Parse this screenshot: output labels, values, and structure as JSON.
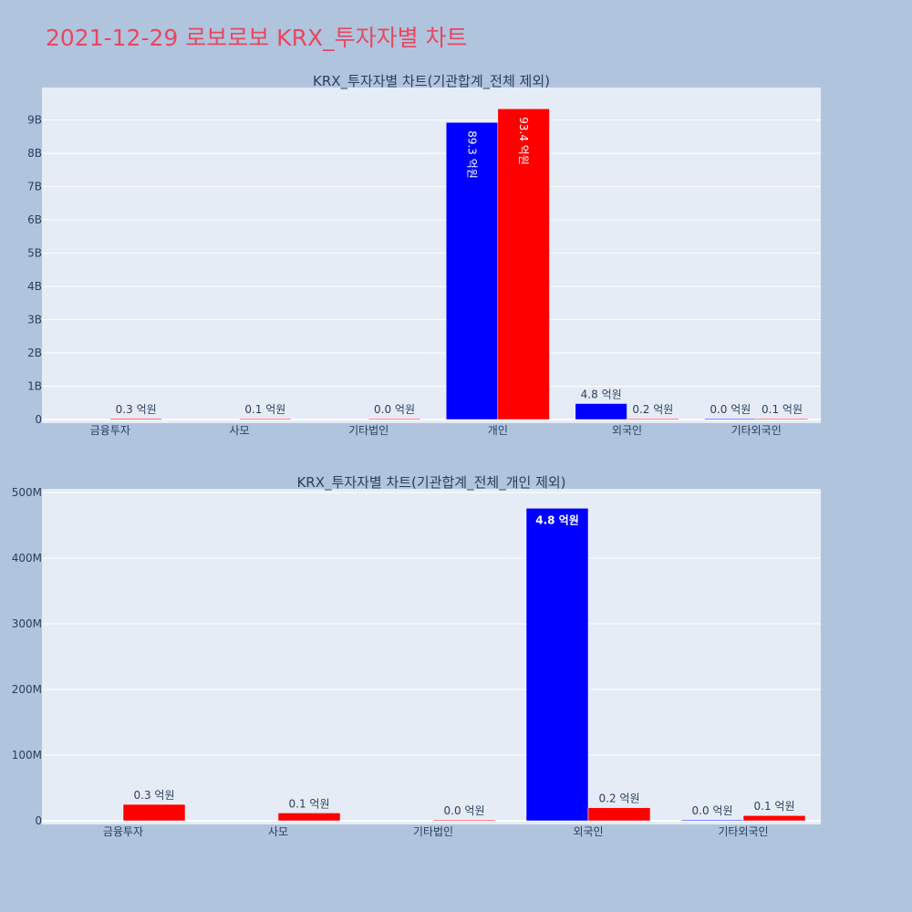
{
  "page_title": "2021-12-29 로보로보 KRX_투자자별 차트",
  "colors": {
    "series_a": "#0000ff",
    "series_b": "#ff0000",
    "plot_bg": "#e5ecf6",
    "title": "#e8475f"
  },
  "chart_data": [
    {
      "type": "bar",
      "title": "KRX_투자자별 차트(기관합계_전체 제외)",
      "categories": [
        "금융투자",
        "사모",
        "기타법인",
        "개인",
        "외국인",
        "기타외국인"
      ],
      "series": [
        {
          "values": [
            null,
            null,
            null,
            8930000000,
            480000000,
            0
          ],
          "labels": [
            "",
            "",
            "",
            "89.3 억원",
            "4.8 억원",
            "0.0 억원"
          ]
        },
        {
          "values": [
            30000000,
            10000000,
            0,
            9340000000,
            20000000,
            10000000
          ],
          "labels": [
            "0.3 억원",
            "0.1 억원",
            "0.0 억원",
            "93.4 억원",
            "0.2 억원",
            "0.1 억원"
          ]
        }
      ],
      "ylim": [
        0,
        9950000000
      ],
      "yticks": [
        0,
        1000000000,
        2000000000,
        3000000000,
        4000000000,
        5000000000,
        6000000000,
        7000000000,
        8000000000,
        9000000000
      ],
      "ytick_labels": [
        "0",
        "1B",
        "2B",
        "3B",
        "4B",
        "5B",
        "6B",
        "7B",
        "8B",
        "9B"
      ],
      "grid": true
    },
    {
      "type": "bar",
      "title": "KRX_투자자별 차트(기관합계_전체_개인 제외)",
      "categories": [
        "금융투자",
        "사모",
        "기타법인",
        "외국인",
        "기타외국인"
      ],
      "series": [
        {
          "values": [
            null,
            null,
            null,
            476000000,
            1000000
          ],
          "labels": [
            "",
            "",
            "",
            "4.8 억원",
            "0.0 억원"
          ]
        },
        {
          "values": [
            25000000,
            12000000,
            1000000,
            20000000,
            8000000
          ],
          "labels": [
            "0.3 억원",
            "0.1 억원",
            "0.0 억원",
            "0.2 억원",
            "0.1 억원"
          ]
        }
      ],
      "ylim": [
        0,
        500000000
      ],
      "yticks": [
        0,
        100000000,
        200000000,
        300000000,
        400000000,
        500000000
      ],
      "ytick_labels": [
        "0",
        "100M",
        "200M",
        "300M",
        "400M",
        "500M"
      ],
      "grid": true
    }
  ]
}
